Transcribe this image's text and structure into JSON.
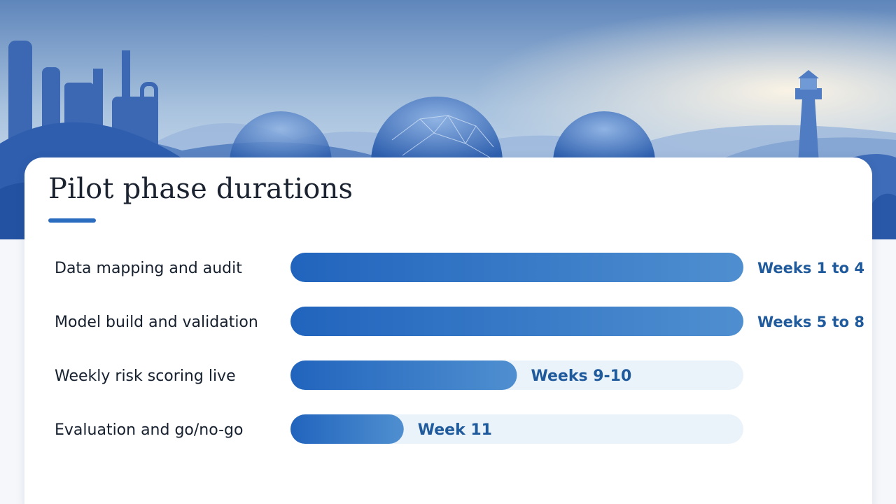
{
  "slide": {
    "title": "Pilot phase durations"
  },
  "colors": {
    "accent": "#2a6cc0",
    "bar_start": "#2164bd",
    "bar_end": "#4f8fd0",
    "track": "#eaf2fa",
    "value_text": "#1f5a9c",
    "label_text": "#16202e"
  },
  "chart_data": {
    "type": "bar",
    "orientation": "horizontal",
    "title": "Pilot phase durations",
    "unit": "weeks",
    "xlim": [
      0,
      4
    ],
    "grid": false,
    "legend": "none",
    "categories": [
      "Data mapping and audit",
      "Model build and validation",
      "Weekly risk scoring live",
      "Evaluation and go/no-go"
    ],
    "values": [
      4,
      4,
      2,
      1
    ],
    "labels": [
      "Weeks 1 to 4",
      "Weeks 5 to 8",
      "Weeks 9-10",
      "Week 11"
    ]
  }
}
